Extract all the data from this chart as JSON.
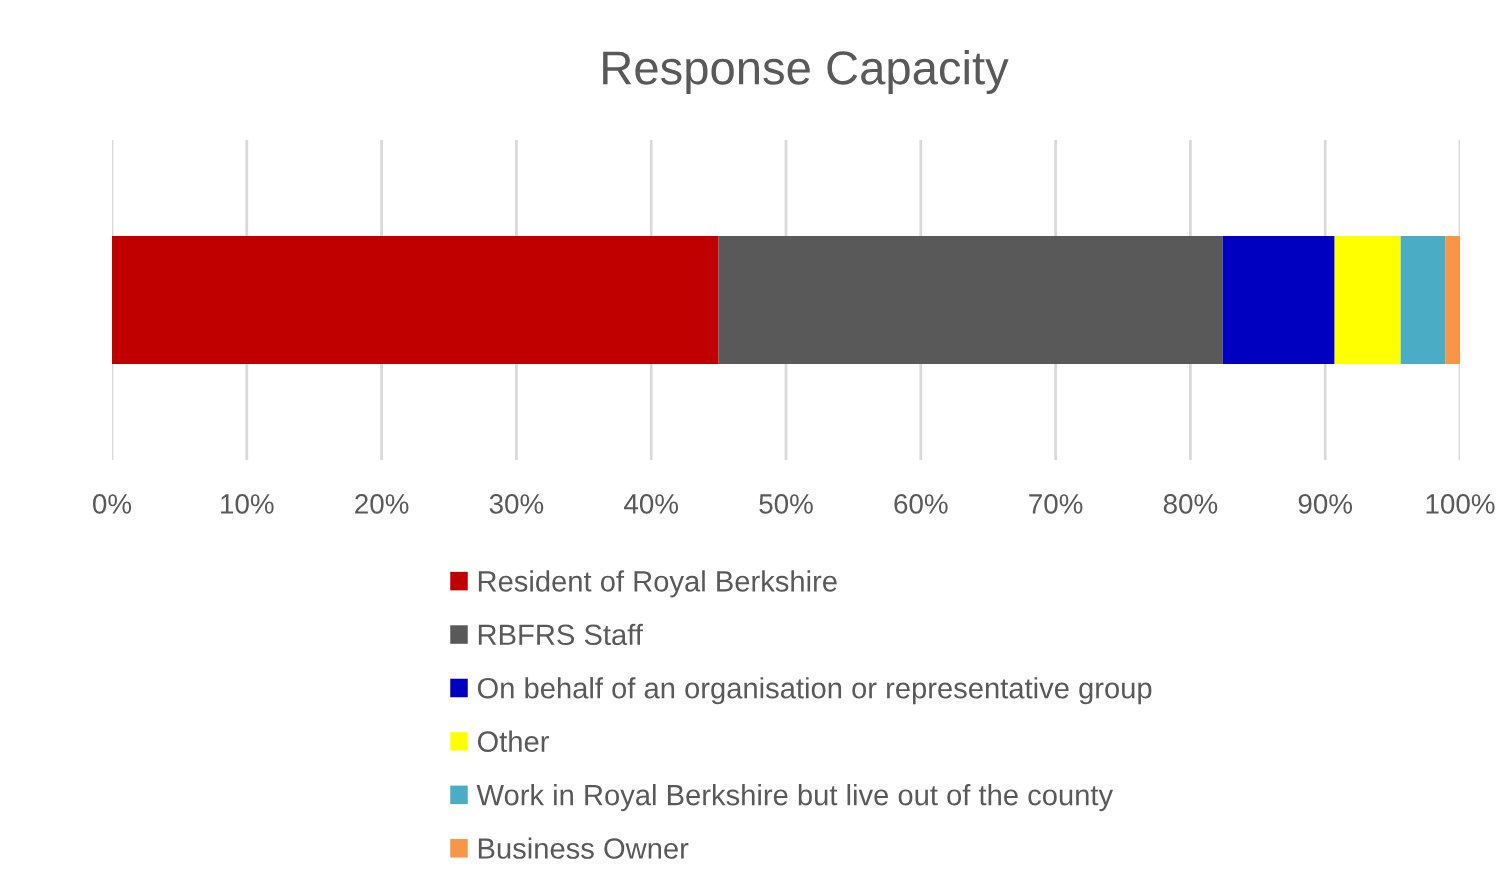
{
  "chart_data": {
    "type": "bar",
    "orientation": "horizontal",
    "stacked": true,
    "title": "Response Capacity",
    "categories": [
      null
    ],
    "series": [
      {
        "name": "Resident of Royal Berkshire",
        "color": "#c00000",
        "values": [
          45.0
        ]
      },
      {
        "name": "RBFRS Staff",
        "color": "#595959",
        "values": [
          37.4
        ]
      },
      {
        "name": "On behalf of an organisation or representative group",
        "color": "#0000c0",
        "values": [
          8.3
        ]
      },
      {
        "name": "Other",
        "color": "#ffff00",
        "values": [
          4.9
        ]
      },
      {
        "name": "Work in Royal Berkshire but live out of the county",
        "color": "#4bacc6",
        "values": [
          3.3
        ]
      },
      {
        "name": "Business Owner",
        "color": "#f79646",
        "values": [
          1.1
        ]
      }
    ],
    "xlim": [
      0,
      100
    ],
    "xticks": [
      {
        "value": 0,
        "label": "0%"
      },
      {
        "value": 10,
        "label": "10%"
      },
      {
        "value": 20,
        "label": "20%"
      },
      {
        "value": 30,
        "label": "30%"
      },
      {
        "value": 40,
        "label": "40%"
      },
      {
        "value": 50,
        "label": "50%"
      },
      {
        "value": 60,
        "label": "60%"
      },
      {
        "value": 70,
        "label": "70%"
      },
      {
        "value": 80,
        "label": "80%"
      },
      {
        "value": 90,
        "label": "90%"
      },
      {
        "value": 100,
        "label": "100%"
      }
    ],
    "grid": "x",
    "legend": "bottom",
    "tick_labels": "x"
  }
}
